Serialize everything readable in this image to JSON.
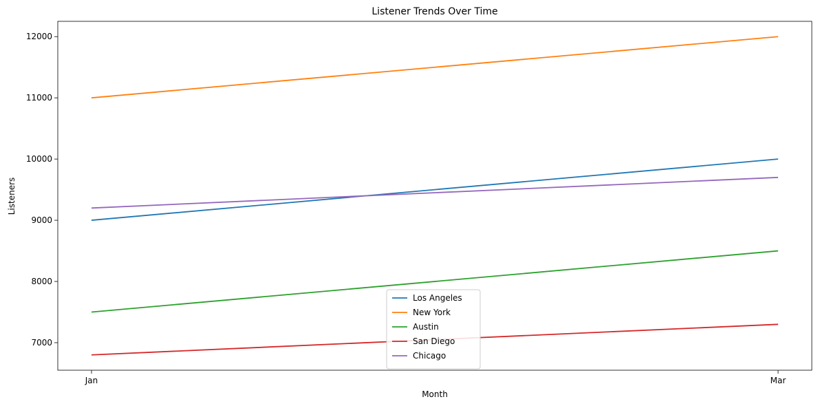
{
  "chart_data": {
    "type": "line",
    "title": "Listener Trends Over Time",
    "xlabel": "Month",
    "ylabel": "Listeners",
    "categories": [
      "Jan",
      "Mar"
    ],
    "ylim": [
      6550,
      12250
    ],
    "yticks": [
      7000,
      8000,
      9000,
      10000,
      11000,
      12000
    ],
    "grid": false,
    "legend_position": "bottom-center",
    "series": [
      {
        "name": "Los Angeles",
        "values": [
          9000,
          10000
        ],
        "color": "#1f77b4"
      },
      {
        "name": "New York",
        "values": [
          11000,
          12000
        ],
        "color": "#ff7f0e"
      },
      {
        "name": "Austin",
        "values": [
          7500,
          8500
        ],
        "color": "#2ca02c"
      },
      {
        "name": "San Diego",
        "values": [
          6800,
          7300
        ],
        "color": "#d62728"
      },
      {
        "name": "Chicago",
        "values": [
          9200,
          9700
        ],
        "color": "#9467bd"
      }
    ]
  }
}
